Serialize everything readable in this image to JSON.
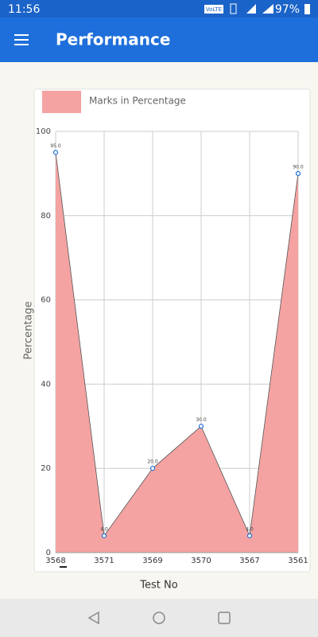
{
  "status_bar": {
    "time": "11:56",
    "network": "VoLTE",
    "battery": "97%"
  },
  "app_bar": {
    "title": "Performance"
  },
  "chart_data": {
    "type": "area",
    "legend": "Marks in Percentage",
    "x_label": "Test No",
    "y_label": "Percentage",
    "categories": [
      "3568",
      "3571",
      "3569",
      "3570",
      "3567",
      "3561"
    ],
    "values": [
      95,
      4,
      20,
      30,
      4,
      90
    ],
    "value_labels": [
      "95.0",
      "4.0",
      "20.0",
      "30.0",
      "4.0",
      "90.0"
    ],
    "color": "#f4a3a2",
    "ylim": [
      0,
      100
    ],
    "yticks": [
      0,
      20,
      40,
      60,
      80,
      100
    ],
    "grid": true
  }
}
